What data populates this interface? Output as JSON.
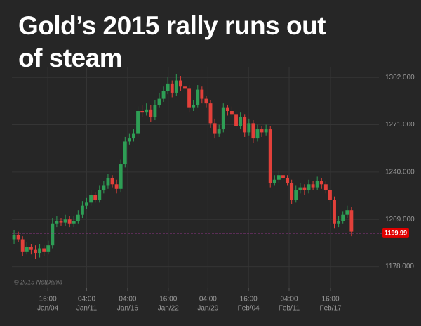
{
  "chart_data": {
    "type": "candlestick",
    "title": "Gold’s 2015 rally runs out of steam",
    "watermark": "© 2015 NetDania",
    "open": [
      1196,
      1199,
      1196,
      1188,
      1191,
      1189,
      1187,
      1190,
      1188,
      1192,
      1206,
      1208,
      1207,
      1209,
      1206,
      1208,
      1212,
      1218,
      1220,
      1225,
      1222,
      1228,
      1231,
      1236,
      1232,
      1229,
      1245,
      1260,
      1262,
      1265,
      1280,
      1279,
      1281,
      1276,
      1284,
      1288,
      1293,
      1298,
      1292,
      1300,
      1296,
      1295,
      1282,
      1284,
      1294,
      1288,
      1285,
      1272,
      1265,
      1268,
      1282,
      1280,
      1278,
      1270,
      1276,
      1266,
      1272,
      1262,
      1268,
      1266,
      1268,
      1233,
      1235,
      1238,
      1236,
      1233,
      1222,
      1228,
      1230,
      1228,
      1232,
      1230,
      1234,
      1232,
      1228,
      1222,
      1206,
      1208,
      1212,
      1215
    ],
    "high": [
      1202,
      1201,
      1198,
      1194,
      1193,
      1192,
      1193,
      1192,
      1195,
      1210,
      1211,
      1210,
      1212,
      1211,
      1211,
      1215,
      1221,
      1223,
      1228,
      1227,
      1231,
      1234,
      1239,
      1238,
      1235,
      1248,
      1263,
      1265,
      1268,
      1283,
      1284,
      1285,
      1284,
      1287,
      1292,
      1296,
      1302,
      1300,
      1304,
      1303,
      1299,
      1297,
      1287,
      1297,
      1296,
      1290,
      1287,
      1275,
      1271,
      1285,
      1284,
      1283,
      1280,
      1279,
      1278,
      1275,
      1274,
      1271,
      1270,
      1271,
      1270,
      1238,
      1241,
      1240,
      1238,
      1235,
      1231,
      1233,
      1232,
      1235,
      1234,
      1237,
      1236,
      1234,
      1230,
      1224,
      1211,
      1214,
      1218,
      1217
    ],
    "low": [
      1193,
      1194,
      1185,
      1186,
      1186,
      1183,
      1184,
      1185,
      1186,
      1190,
      1204,
      1205,
      1205,
      1204,
      1204,
      1206,
      1210,
      1216,
      1218,
      1220,
      1220,
      1226,
      1229,
      1230,
      1226,
      1227,
      1243,
      1258,
      1260,
      1263,
      1276,
      1277,
      1273,
      1274,
      1282,
      1286,
      1291,
      1289,
      1290,
      1293,
      1292,
      1279,
      1280,
      1282,
      1285,
      1282,
      1269,
      1262,
      1263,
      1266,
      1277,
      1276,
      1268,
      1268,
      1263,
      1264,
      1259,
      1260,
      1263,
      1264,
      1230,
      1231,
      1233,
      1233,
      1231,
      1219,
      1220,
      1226,
      1225,
      1226,
      1228,
      1228,
      1229,
      1226,
      1220,
      1203,
      1204,
      1206,
      1210,
      1198
    ],
    "close": [
      1199,
      1196,
      1188,
      1191,
      1189,
      1187,
      1190,
      1188,
      1192,
      1206,
      1208,
      1207,
      1209,
      1206,
      1208,
      1212,
      1218,
      1220,
      1225,
      1222,
      1228,
      1231,
      1236,
      1232,
      1229,
      1245,
      1260,
      1262,
      1265,
      1280,
      1279,
      1281,
      1276,
      1284,
      1288,
      1293,
      1298,
      1292,
      1300,
      1296,
      1295,
      1282,
      1284,
      1294,
      1288,
      1285,
      1272,
      1265,
      1268,
      1282,
      1280,
      1278,
      1270,
      1276,
      1266,
      1272,
      1262,
      1268,
      1266,
      1268,
      1233,
      1235,
      1238,
      1236,
      1233,
      1222,
      1228,
      1230,
      1228,
      1232,
      1230,
      1234,
      1232,
      1228,
      1222,
      1206,
      1208,
      1212,
      1215,
      1201
    ],
    "up_color": "#2e9e55",
    "down_color": "#e2403a",
    "last_price": 1199.99,
    "last_price_color": "#b03aa6",
    "xlim": [
      -0.5,
      80.5
    ],
    "xticks": [
      {
        "value": 7.9,
        "label": [
          "16:00",
          "Jan/04"
        ]
      },
      {
        "value": 17,
        "label": [
          "04:00",
          "Jan/11"
        ]
      },
      {
        "value": 26.6,
        "label": [
          "04:00",
          "Jan/16"
        ]
      },
      {
        "value": 36.1,
        "label": [
          "16:00",
          "Jan/22"
        ]
      },
      {
        "value": 45.4,
        "label": [
          "04:00",
          "Jan/29"
        ]
      },
      {
        "value": 54.9,
        "label": [
          "16:00",
          "Feb/04"
        ]
      },
      {
        "value": 64.4,
        "label": [
          "04:00",
          "Feb/11"
        ]
      },
      {
        "value": 74.1,
        "label": [
          "16:00",
          "Feb/17"
        ]
      }
    ],
    "ylim": [
      1164,
      1309
    ],
    "yticks": [
      {
        "value": 1178,
        "label": "1178.000"
      },
      {
        "value": 1209,
        "label": "1209.000"
      },
      {
        "value": 1240,
        "label": "1240.000"
      },
      {
        "value": 1271,
        "label": "1271.000"
      },
      {
        "value": 1302,
        "label": "1302.000"
      }
    ],
    "grid": true
  }
}
